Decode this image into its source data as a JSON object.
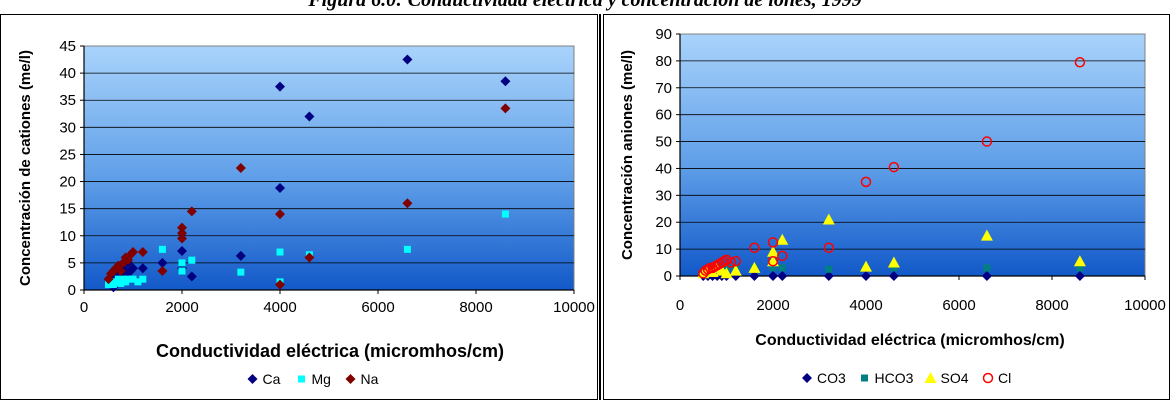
{
  "figure_title": "Figura 6.0: Conductividad eléctrica y concentración de iones, 1999",
  "chart_data": [
    {
      "type": "scatter",
      "xlabel": "Conductividad eléctrica (micromhos/cm)",
      "ylabel": "Concentración de cationes (me/l)",
      "xlim": [
        0,
        10000
      ],
      "ylim": [
        0,
        45
      ],
      "x_ticks": [
        "0",
        "2000",
        "4000",
        "6000",
        "8000",
        "10000"
      ],
      "y_ticks": [
        "0",
        "5",
        "10",
        "15",
        "20",
        "25",
        "30",
        "35",
        "40",
        "45"
      ],
      "grid": true,
      "legend_position": "bottom",
      "series": [
        {
          "name": "Ca",
          "marker": "diamond",
          "color": "#000080",
          "points": [
            [
              520,
              1.5
            ],
            [
              560,
              2.5
            ],
            [
              600,
              0.5
            ],
            [
              620,
              3
            ],
            [
              650,
              2
            ],
            [
              700,
              3.5
            ],
            [
              750,
              2.5
            ],
            [
              800,
              4
            ],
            [
              850,
              3
            ],
            [
              900,
              5
            ],
            [
              950,
              3.5
            ],
            [
              1000,
              4
            ],
            [
              1200,
              4
            ],
            [
              1600,
              5
            ],
            [
              2000,
              7.2
            ],
            [
              2000,
              4
            ],
            [
              2200,
              2.5
            ],
            [
              3200,
              6.3
            ],
            [
              4000,
              37.5
            ],
            [
              4000,
              18.8
            ],
            [
              4600,
              32
            ],
            [
              6600,
              42.5
            ],
            [
              8600,
              38.5
            ]
          ]
        },
        {
          "name": "Mg",
          "marker": "square",
          "color": "#00FFFF",
          "points": [
            [
              500,
              1
            ],
            [
              550,
              1.5
            ],
            [
              600,
              1
            ],
            [
              650,
              1.5
            ],
            [
              700,
              2
            ],
            [
              750,
              1.2
            ],
            [
              800,
              2
            ],
            [
              850,
              1.5
            ],
            [
              900,
              2
            ],
            [
              1000,
              2
            ],
            [
              1100,
              1.5
            ],
            [
              1200,
              2
            ],
            [
              1600,
              7.5
            ],
            [
              2000,
              5
            ],
            [
              2000,
              3.5
            ],
            [
              2200,
              5.5
            ],
            [
              3200,
              3.3
            ],
            [
              4000,
              7
            ],
            [
              4000,
              1.5
            ],
            [
              4600,
              6.5
            ],
            [
              6600,
              7.5
            ],
            [
              8600,
              14
            ]
          ]
        },
        {
          "name": "Na",
          "marker": "diamond",
          "color": "#800000",
          "points": [
            [
              500,
              2
            ],
            [
              550,
              3
            ],
            [
              600,
              3.5
            ],
            [
              650,
              4
            ],
            [
              700,
              4.5
            ],
            [
              750,
              3.5
            ],
            [
              800,
              5
            ],
            [
              850,
              6
            ],
            [
              900,
              5.5
            ],
            [
              950,
              6.5
            ],
            [
              1000,
              7
            ],
            [
              1200,
              7
            ],
            [
              1600,
              3.5
            ],
            [
              2000,
              11.5
            ],
            [
              2000,
              9.5
            ],
            [
              2000,
              10.5
            ],
            [
              2200,
              14.5
            ],
            [
              3200,
              22.5
            ],
            [
              4000,
              14
            ],
            [
              4000,
              1
            ],
            [
              4600,
              6
            ],
            [
              6600,
              16
            ],
            [
              8600,
              33.5
            ]
          ]
        }
      ]
    },
    {
      "type": "scatter",
      "xlabel": "Conductividad eléctrica (micromhos/cm)",
      "ylabel": "Concentración aniones (me/l)",
      "xlim": [
        0,
        10000
      ],
      "ylim": [
        0,
        90
      ],
      "x_ticks": [
        "0",
        "2000",
        "4000",
        "6000",
        "8000",
        "10000"
      ],
      "y_ticks": [
        "0",
        "10",
        "20",
        "30",
        "40",
        "50",
        "60",
        "70",
        "80",
        "90"
      ],
      "grid": true,
      "legend_position": "bottom",
      "series": [
        {
          "name": "CO3",
          "marker": "diamond",
          "color": "#000080",
          "points": [
            [
              500,
              0
            ],
            [
              600,
              0
            ],
            [
              700,
              0
            ],
            [
              800,
              0
            ],
            [
              900,
              0
            ],
            [
              1000,
              0
            ],
            [
              1200,
              0
            ],
            [
              1600,
              0
            ],
            [
              2000,
              0
            ],
            [
              2200,
              0
            ],
            [
              3200,
              0
            ],
            [
              4000,
              0
            ],
            [
              4600,
              0
            ],
            [
              6600,
              0
            ],
            [
              8600,
              0
            ]
          ]
        },
        {
          "name": "HCO3",
          "marker": "square",
          "color": "#008080",
          "points": [
            [
              500,
              1.5
            ],
            [
              600,
              2
            ],
            [
              700,
              2.5
            ],
            [
              800,
              3
            ],
            [
              900,
              2.5
            ],
            [
              1000,
              3
            ],
            [
              1200,
              3
            ],
            [
              1600,
              3
            ],
            [
              2000,
              3
            ],
            [
              2200,
              3
            ],
            [
              3200,
              2.5
            ],
            [
              4000,
              3
            ],
            [
              4600,
              3
            ],
            [
              6600,
              3
            ],
            [
              8600,
              3
            ]
          ]
        },
        {
          "name": "SO4",
          "marker": "triangle",
          "color": "#FFFF00",
          "points": [
            [
              500,
              1
            ],
            [
              600,
              2
            ],
            [
              700,
              1.5
            ],
            [
              800,
              3
            ],
            [
              900,
              2
            ],
            [
              1000,
              1
            ],
            [
              1200,
              2
            ],
            [
              1600,
              3
            ],
            [
              2000,
              5.5
            ],
            [
              2000,
              9
            ],
            [
              2200,
              13.5
            ],
            [
              3200,
              21
            ],
            [
              4000,
              3.5
            ],
            [
              4600,
              5
            ],
            [
              6600,
              15
            ],
            [
              8600,
              5.5
            ]
          ]
        },
        {
          "name": "Cl",
          "marker": "circle",
          "color": "#FF0000",
          "points": [
            [
              500,
              1
            ],
            [
              550,
              2
            ],
            [
              600,
              2.5
            ],
            [
              650,
              3
            ],
            [
              700,
              3
            ],
            [
              750,
              3.5
            ],
            [
              800,
              4
            ],
            [
              850,
              4.5
            ],
            [
              900,
              5
            ],
            [
              950,
              5.5
            ],
            [
              1000,
              6
            ],
            [
              1100,
              5
            ],
            [
              1200,
              5.5
            ],
            [
              1600,
              10.5
            ],
            [
              2000,
              12.5
            ],
            [
              2000,
              5.5
            ],
            [
              2200,
              7.5
            ],
            [
              3200,
              10.5
            ],
            [
              4000,
              35
            ],
            [
              4600,
              40.5
            ],
            [
              6600,
              50
            ],
            [
              8600,
              79.5
            ]
          ]
        }
      ]
    }
  ]
}
